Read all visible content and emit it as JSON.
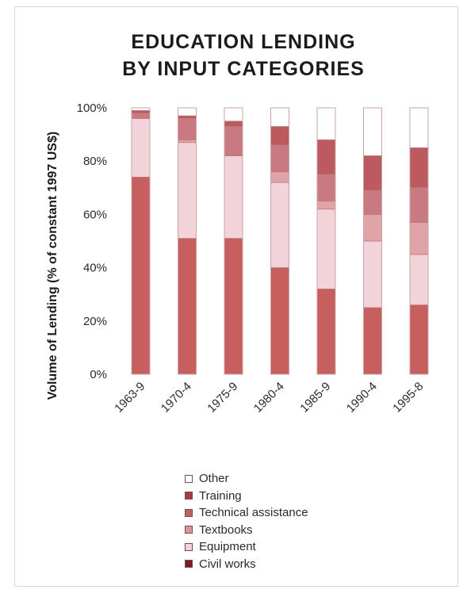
{
  "chart_data": {
    "type": "bar",
    "stacked": true,
    "title": [
      "EDUCATION LENDING",
      "BY INPUT CATEGORIES"
    ],
    "xlabel": "",
    "ylabel": "Volume of Lending (% of constant 1997 US$)",
    "ylim": [
      0,
      100
    ],
    "yticks": [
      "0%",
      "20%",
      "40%",
      "60%",
      "80%",
      "100%"
    ],
    "categories": [
      "1963-9",
      "1970-4",
      "1975-9",
      "1980-4",
      "1985-9",
      "1990-4",
      "1995-8"
    ],
    "legend_position": "bottom",
    "series": [
      {
        "name": "Civil works",
        "color": "#c85f5f",
        "values": [
          74,
          51,
          51,
          40,
          32,
          25,
          26
        ]
      },
      {
        "name": "Equipment",
        "color": "#f2d3da",
        "values": [
          22,
          36,
          31,
          32,
          30,
          25,
          19
        ]
      },
      {
        "name": "Textbooks",
        "color": "#e0a4a8",
        "values": [
          0,
          1,
          0,
          4,
          3,
          10,
          12
        ]
      },
      {
        "name": "Technical assistance",
        "color": "#c97a80",
        "values": [
          2,
          8,
          11,
          10,
          10,
          9,
          13
        ]
      },
      {
        "name": "Training",
        "color": "#bd5a60",
        "values": [
          1,
          1,
          2,
          7,
          13,
          13,
          15
        ]
      },
      {
        "name": "Other",
        "color": "#ffffff",
        "values": [
          1,
          3,
          5,
          7,
          12,
          18,
          15
        ]
      }
    ],
    "legend": [
      {
        "name": "Other",
        "color": "#ffffff"
      },
      {
        "name": "Training",
        "color": "#a63a48"
      },
      {
        "name": "Technical assistance",
        "color": "#c06069"
      },
      {
        "name": "Textbooks",
        "color": "#d8949a"
      },
      {
        "name": "Equipment",
        "color": "#f2d3da"
      },
      {
        "name": "Civil works",
        "color": "#7a1a22"
      }
    ]
  }
}
